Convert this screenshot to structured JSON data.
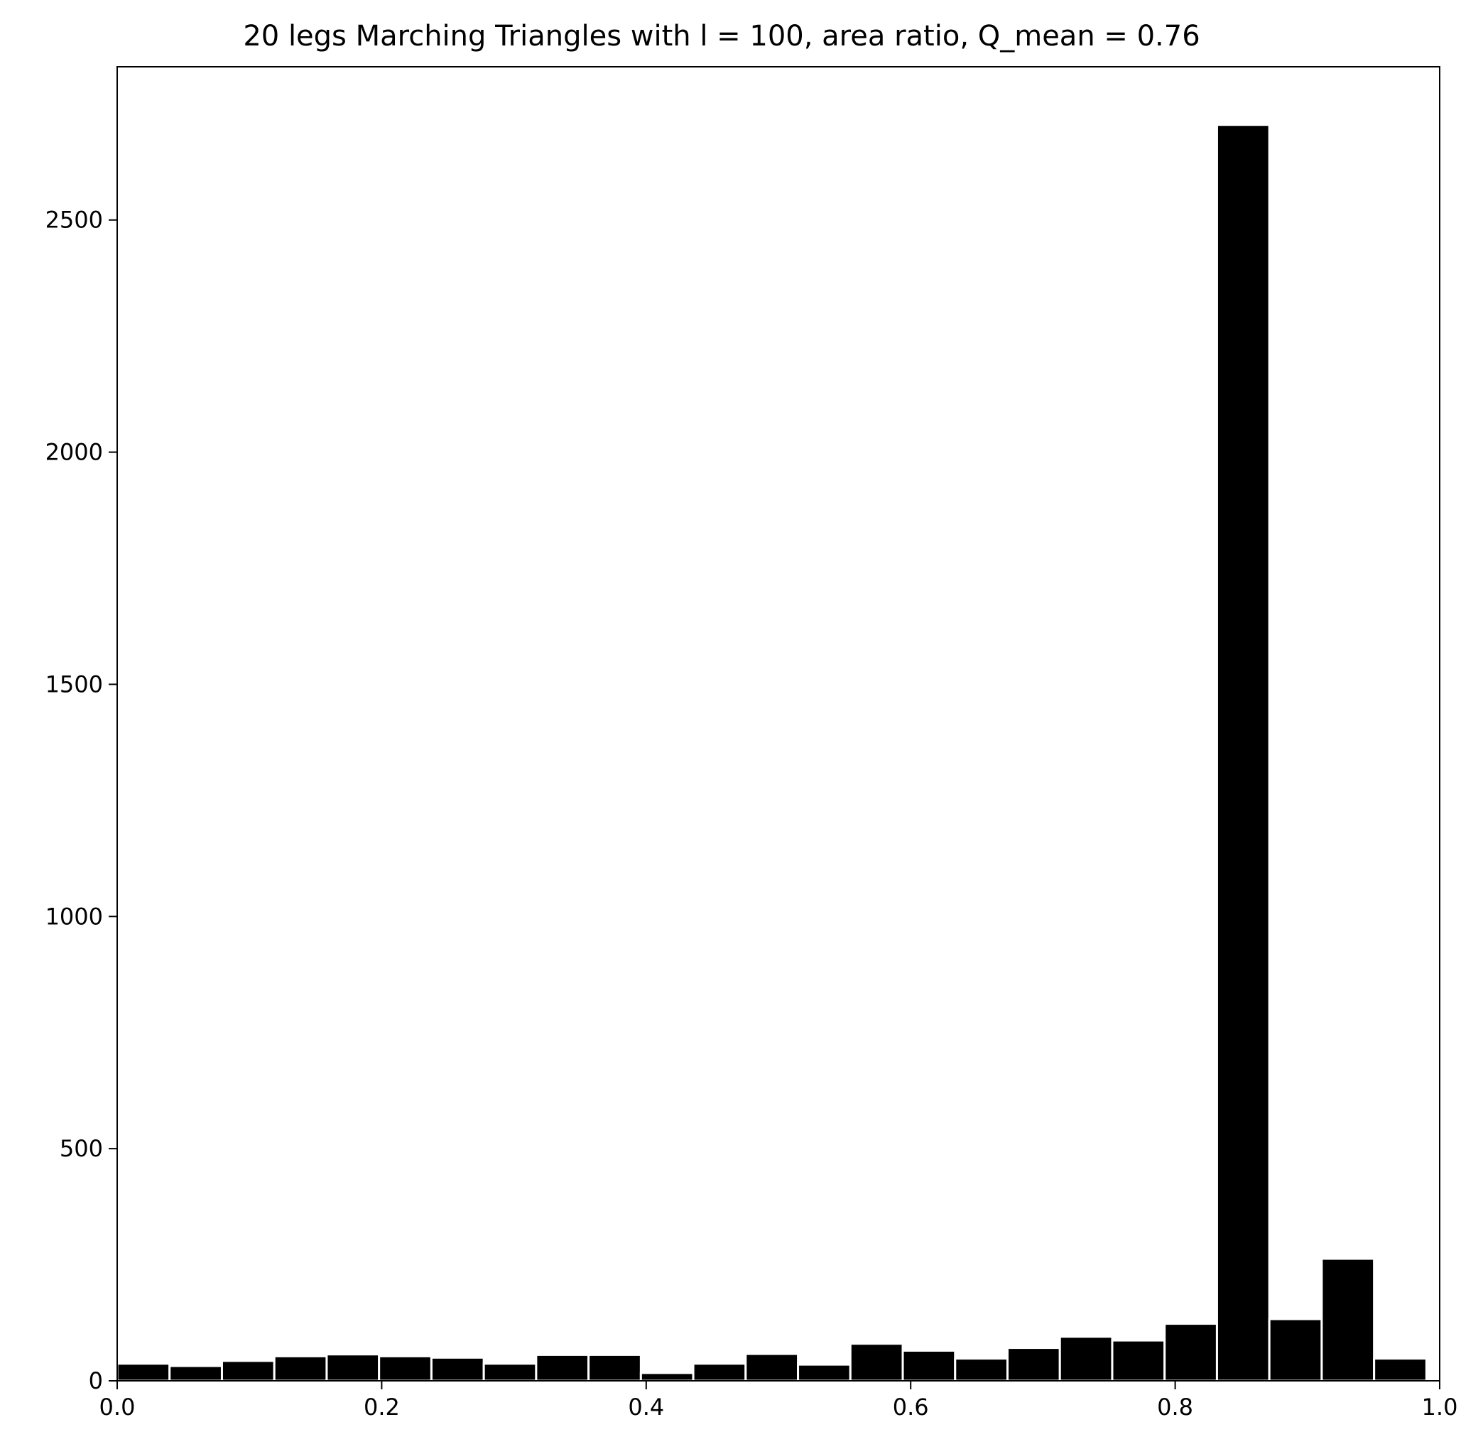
{
  "chart_data": {
    "type": "bar",
    "title": "20 legs Marching Triangles with l = 100, area ratio, Q_mean = 0.76",
    "xlabel": "",
    "ylabel": "",
    "xlim": [
      0.0,
      1.0
    ],
    "ylim": [
      0,
      2830
    ],
    "bin_width": 0.0396,
    "grid": false,
    "legend": "none",
    "bar_color": "#000000",
    "bar_edge_color": "#ffffff",
    "bins": [
      {
        "x0": 0.0,
        "value": 37
      },
      {
        "x0": 0.0396,
        "value": 32
      },
      {
        "x0": 0.0792,
        "value": 43
      },
      {
        "x0": 0.1188,
        "value": 53
      },
      {
        "x0": 0.1584,
        "value": 57
      },
      {
        "x0": 0.198,
        "value": 53
      },
      {
        "x0": 0.2376,
        "value": 50
      },
      {
        "x0": 0.2772,
        "value": 37
      },
      {
        "x0": 0.3168,
        "value": 56
      },
      {
        "x0": 0.3564,
        "value": 56
      },
      {
        "x0": 0.396,
        "value": 17
      },
      {
        "x0": 0.4356,
        "value": 37
      },
      {
        "x0": 0.4752,
        "value": 58
      },
      {
        "x0": 0.5148,
        "value": 35
      },
      {
        "x0": 0.5544,
        "value": 80
      },
      {
        "x0": 0.594,
        "value": 65
      },
      {
        "x0": 0.6336,
        "value": 48
      },
      {
        "x0": 0.6732,
        "value": 71
      },
      {
        "x0": 0.7128,
        "value": 95
      },
      {
        "x0": 0.7524,
        "value": 87
      },
      {
        "x0": 0.792,
        "value": 123
      },
      {
        "x0": 0.8316,
        "value": 2705
      },
      {
        "x0": 0.8712,
        "value": 133
      },
      {
        "x0": 0.9108,
        "value": 263
      },
      {
        "x0": 0.9504,
        "value": 48
      }
    ],
    "x_ticks": [
      {
        "value": 0.0,
        "label": "0.0"
      },
      {
        "value": 0.2,
        "label": "0.2"
      },
      {
        "value": 0.4,
        "label": "0.4"
      },
      {
        "value": 0.6,
        "label": "0.6"
      },
      {
        "value": 0.8,
        "label": "0.8"
      },
      {
        "value": 1.0,
        "label": "1.0"
      }
    ],
    "y_ticks": [
      {
        "value": 0,
        "label": "0"
      },
      {
        "value": 500,
        "label": "500"
      },
      {
        "value": 1000,
        "label": "1000"
      },
      {
        "value": 1500,
        "label": "1500"
      },
      {
        "value": 2000,
        "label": "2000"
      },
      {
        "value": 2500,
        "label": "2500"
      }
    ]
  }
}
